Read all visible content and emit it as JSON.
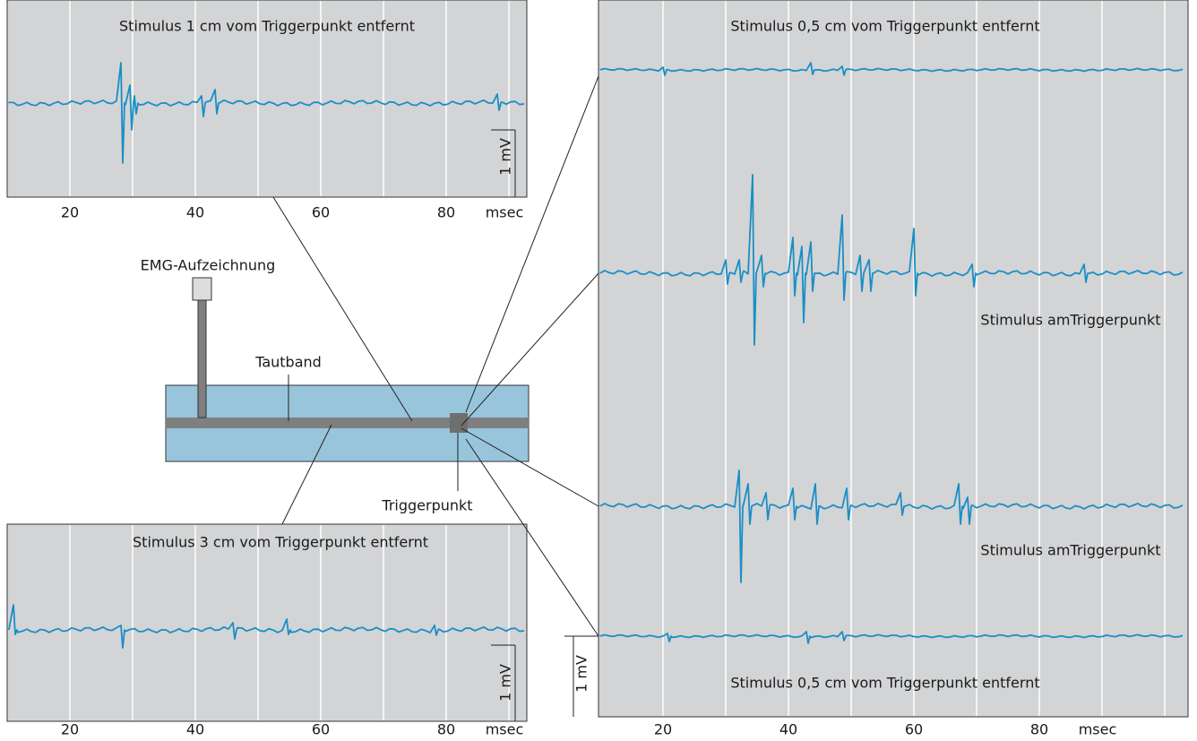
{
  "panels": {
    "top_left": {
      "title": "Stimulus 1 cm vom Triggerpunkt entfernt",
      "tick_labels": [
        "20",
        "40",
        "60",
        "80"
      ],
      "unit": "msec",
      "scale_label": "1 mV"
    },
    "bottom_left": {
      "title": "Stimulus 3 cm vom Triggerpunkt entfernt",
      "tick_labels": [
        "20",
        "40",
        "60",
        "80"
      ],
      "unit": "msec",
      "scale_label": "1 mV"
    },
    "right": {
      "title": "Stimulus 0,5 cm vom Triggerpunkt entfernt",
      "trace_labels": [
        "Stimulus amTriggerpunkt",
        "Stimulus amTriggerpunkt"
      ],
      "bottom_title": "Stimulus 0,5 cm vom Triggerpunkt entfernt",
      "tick_labels": [
        "20",
        "40",
        "60",
        "80"
      ],
      "unit": "msec",
      "scale_label": "1 mV"
    }
  },
  "diagram": {
    "recording_label": "EMG-Aufzeichnung",
    "band_label": "Tautband",
    "trigger_label": "Triggerpunkt"
  }
}
